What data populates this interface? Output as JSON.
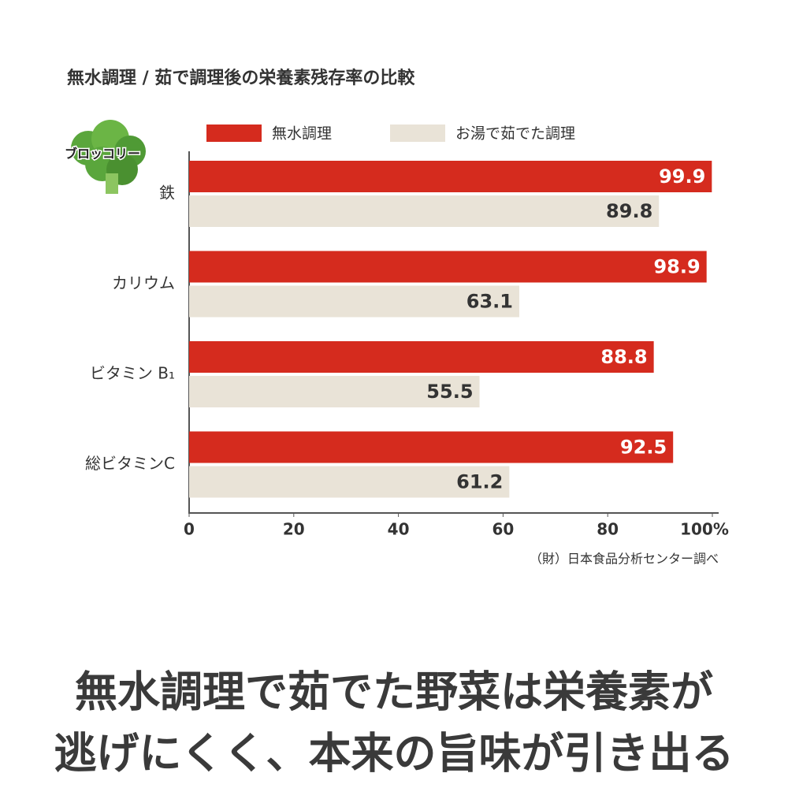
{
  "chart_data": {
    "type": "bar",
    "orientation": "horizontal",
    "title": "無水調理 / 茹で調理後の栄養素残存率の比較",
    "label": "ブロッコリー",
    "categories": [
      "鉄",
      "カリウム",
      "ビタミン B₁",
      "総ビタミンC"
    ],
    "series": [
      {
        "name": "無水調理",
        "color": "#d52b1e",
        "values": [
          99.9,
          98.9,
          88.8,
          92.5
        ]
      },
      {
        "name": "お湯で茹でた調理",
        "color": "#e9e3d7",
        "values": [
          89.8,
          63.1,
          55.5,
          61.2
        ]
      }
    ],
    "xlim": [
      0,
      100
    ],
    "xticks": [
      0,
      20,
      40,
      60,
      80,
      {
        "value": 100,
        "label": "100%"
      }
    ],
    "source": "（財）日本食品分析センター調べ",
    "caption": [
      "無水調理で茹でた野菜は栄養素が",
      "逃げにくく、本来の旨味が引き出る"
    ]
  }
}
